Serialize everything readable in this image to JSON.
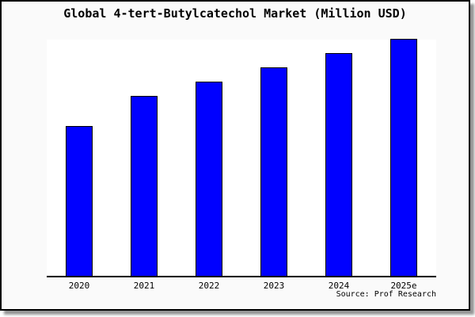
{
  "card": {
    "background": "#fafafa",
    "border_color": "#000000"
  },
  "title": "Global 4-tert-Butylcatechol Market (Million USD)",
  "source_note": "Source: Prof Research",
  "chart_data": {
    "type": "bar",
    "title": "Global 4-tert-Butylcatechol Market (Million USD)",
    "categories": [
      "2020",
      "2021",
      "2022",
      "2023",
      "2024",
      "2025e"
    ],
    "values": [
      63,
      76,
      82,
      88,
      94,
      100
    ],
    "value_basis": "relative bar height, tallest bar (2025e) = 100; y-axis has no visible ticks or labels",
    "xlabel": "",
    "ylabel": "",
    "ylim": [
      0,
      100
    ],
    "grid": false,
    "legend": false,
    "bar_color": "#0000ff",
    "bar_border_color": "#000000",
    "plot_background": "#ffffff",
    "axis_color": "#000000",
    "source": "Source: Prof Research"
  }
}
